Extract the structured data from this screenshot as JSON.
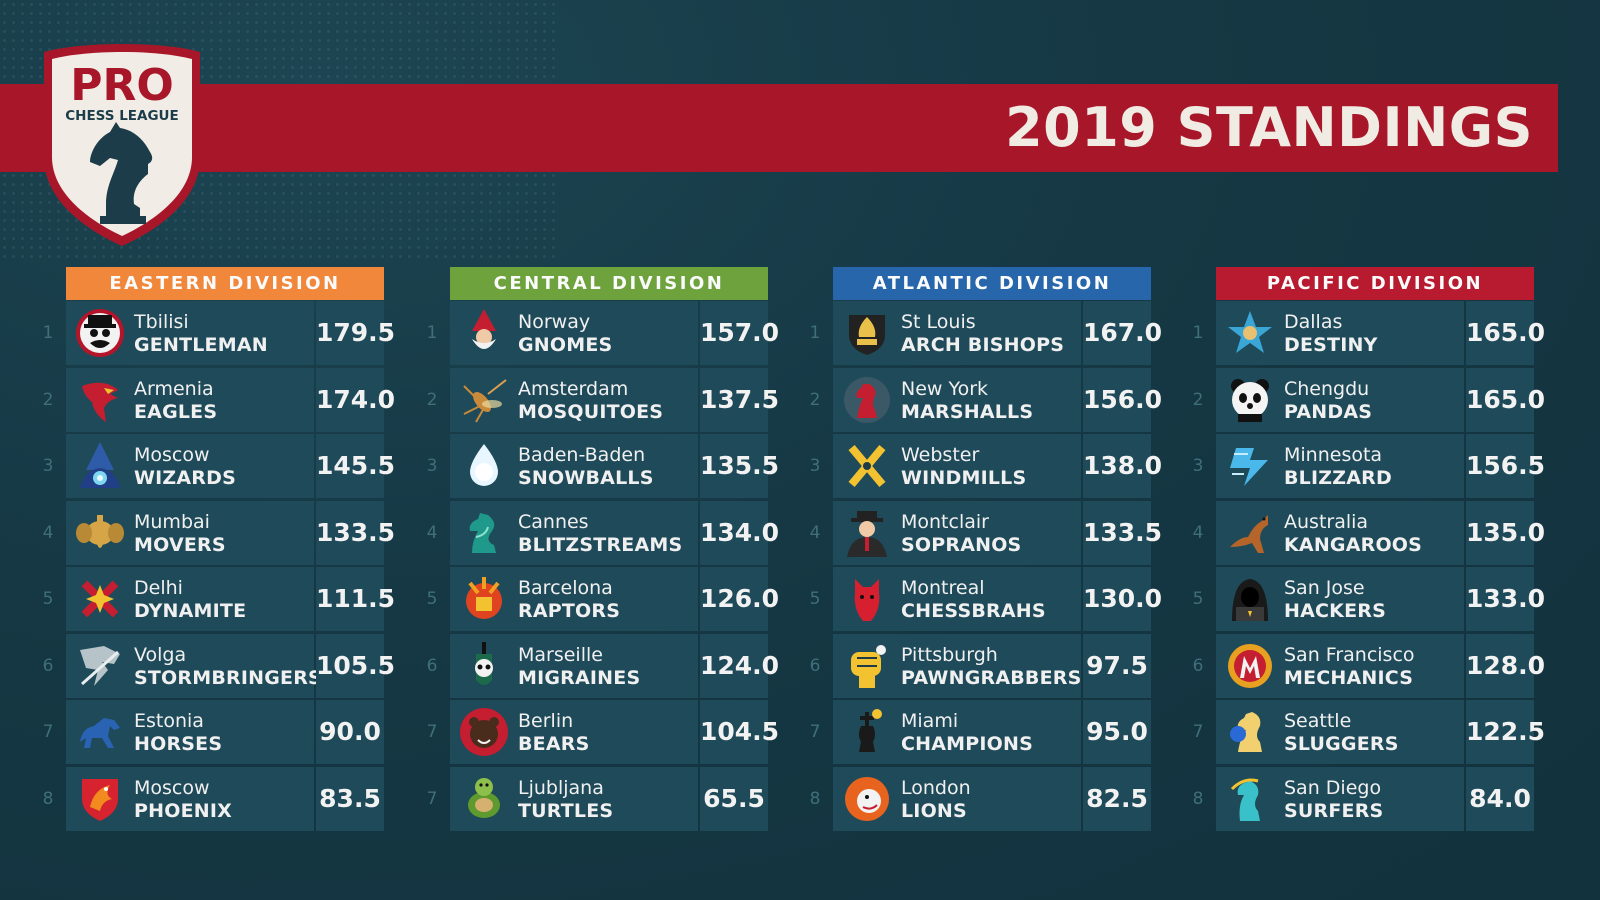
{
  "title": "2019 STANDINGS",
  "logo": {
    "line1": "PRO",
    "line2": "CHESS LEAGUE"
  },
  "colors": {
    "banner": "#a81729",
    "eastern": "#f0873a",
    "central": "#6da23c",
    "atlantic": "#2766ab",
    "pacific": "#b81a30",
    "row": "#1f4a59"
  },
  "divisions": [
    {
      "name": "EASTERN DIVISION",
      "teams": [
        {
          "rank": "1",
          "city": "Tbilisi",
          "nick": "GENTLEMAN",
          "score": "179.5",
          "icon": "gentleman-icon"
        },
        {
          "rank": "2",
          "city": "Armenia",
          "nick": "EAGLES",
          "score": "174.0",
          "icon": "eagle-icon"
        },
        {
          "rank": "3",
          "city": "Moscow",
          "nick": "WIZARDS",
          "score": "145.5",
          "icon": "wizard-icon"
        },
        {
          "rank": "4",
          "city": "Mumbai",
          "nick": "MOVERS",
          "score": "133.5",
          "icon": "elephant-icon"
        },
        {
          "rank": "5",
          "city": "Delhi",
          "nick": "DYNAMITE",
          "score": "111.5",
          "icon": "dynamite-icon"
        },
        {
          "rank": "6",
          "city": "Volga",
          "nick": "STORMBRINGERS",
          "score": "105.5",
          "icon": "storm-icon"
        },
        {
          "rank": "7",
          "city": "Estonia",
          "nick": "HORSES",
          "score": "90.0",
          "icon": "horse-icon"
        },
        {
          "rank": "8",
          "city": "Moscow",
          "nick": "PHOENIX",
          "score": "83.5",
          "icon": "phoenix-icon"
        }
      ]
    },
    {
      "name": "CENTRAL DIVISION",
      "teams": [
        {
          "rank": "1",
          "city": "Norway",
          "nick": "GNOMES",
          "score": "157.0",
          "icon": "gnome-icon"
        },
        {
          "rank": "2",
          "city": "Amsterdam",
          "nick": "MOSQUITOES",
          "score": "137.5",
          "icon": "mosquito-icon"
        },
        {
          "rank": "3",
          "city": "Baden-Baden",
          "nick": "SNOWBALLS",
          "score": "135.5",
          "icon": "snowball-icon"
        },
        {
          "rank": "4",
          "city": "Cannes",
          "nick": "BLITZSTREAMS",
          "score": "134.0",
          "icon": "knight-stream-icon"
        },
        {
          "rank": "5",
          "city": "Barcelona",
          "nick": "RAPTORS",
          "score": "126.0",
          "icon": "raptor-icon"
        },
        {
          "rank": "6",
          "city": "Marseille",
          "nick": "MIGRAINES",
          "score": "124.0",
          "icon": "skull-icon"
        },
        {
          "rank": "7",
          "city": "Berlin",
          "nick": "BEARS",
          "score": "104.5",
          "icon": "bear-icon"
        },
        {
          "rank": "7",
          "city": "Ljubljana",
          "nick": "TURTLES",
          "score": "65.5",
          "icon": "turtle-icon"
        }
      ]
    },
    {
      "name": "ATLANTIC DIVISION",
      "teams": [
        {
          "rank": "1",
          "city": "St Louis",
          "nick": "ARCH BISHOPS",
          "score": "167.0",
          "icon": "bishop-icon"
        },
        {
          "rank": "2",
          "city": "New York",
          "nick": "MARSHALLS",
          "score": "156.0",
          "icon": "knight-shield-icon"
        },
        {
          "rank": "3",
          "city": "Webster",
          "nick": "WINDMILLS",
          "score": "138.0",
          "icon": "windmill-icon"
        },
        {
          "rank": "4",
          "city": "Montclair",
          "nick": "SOPRANOS",
          "score": "133.5",
          "icon": "mobster-icon"
        },
        {
          "rank": "5",
          "city": "Montreal",
          "nick": "CHESSBRAHS",
          "score": "130.0",
          "icon": "horse-head-icon"
        },
        {
          "rank": "6",
          "city": "Pittsburgh",
          "nick": "PAWNGRABBERS",
          "score": "97.5",
          "icon": "fist-icon"
        },
        {
          "rank": "7",
          "city": "Miami",
          "nick": "CHAMPIONS",
          "score": "95.0",
          "icon": "king-icon"
        },
        {
          "rank": "8",
          "city": "London",
          "nick": "LIONS",
          "score": "82.5",
          "icon": "lion-icon"
        }
      ]
    },
    {
      "name": "PACIFIC DIVISION",
      "teams": [
        {
          "rank": "1",
          "city": "Dallas",
          "nick": "DESTINY",
          "score": "165.0",
          "icon": "star-icon"
        },
        {
          "rank": "2",
          "city": "Chengdu",
          "nick": "PANDAS",
          "score": "165.0",
          "icon": "panda-icon"
        },
        {
          "rank": "3",
          "city": "Minnesota",
          "nick": "BLIZZARD",
          "score": "156.5",
          "icon": "blizzard-icon"
        },
        {
          "rank": "4",
          "city": "Australia",
          "nick": "KANGAROOS",
          "score": "135.0",
          "icon": "kangaroo-icon"
        },
        {
          "rank": "5",
          "city": "San Jose",
          "nick": "HACKERS",
          "score": "133.0",
          "icon": "hacker-icon"
        },
        {
          "rank": "6",
          "city": "San Francisco",
          "nick": "MECHANICS",
          "score": "128.0",
          "icon": "gear-icon"
        },
        {
          "rank": "7",
          "city": "Seattle",
          "nick": "SLUGGERS",
          "score": "122.5",
          "icon": "boxing-knight-icon"
        },
        {
          "rank": "8",
          "city": "San Diego",
          "nick": "SURFERS",
          "score": "84.0",
          "icon": "surfer-icon"
        }
      ]
    }
  ]
}
